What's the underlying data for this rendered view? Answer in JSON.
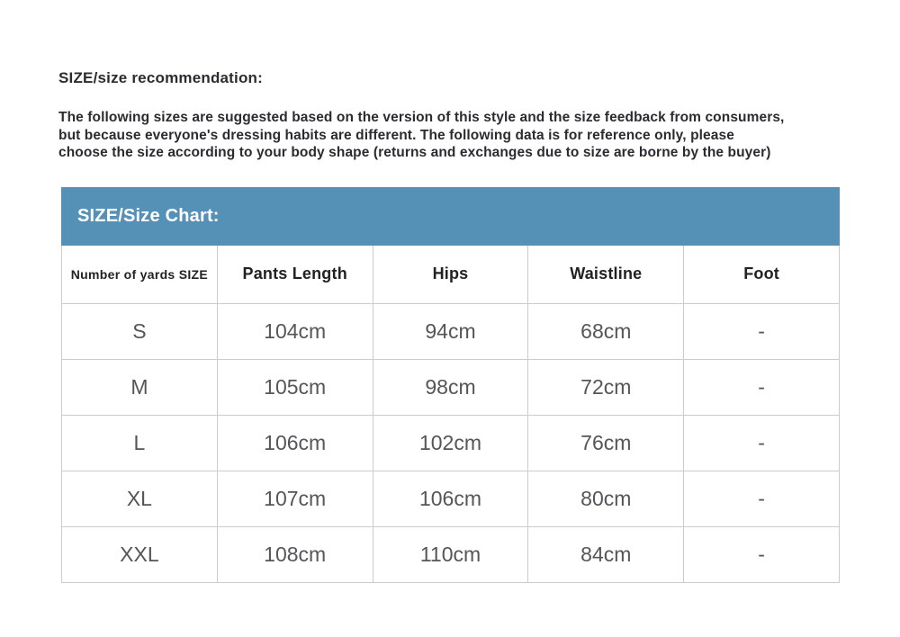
{
  "heading": "SIZE/size recommendation:",
  "intro": {
    "lines": [
      "The following sizes are suggested based on the version of this style and the size feedback from consumers,",
      "but because everyone's dressing habits are different. The following data is for reference only, please",
      "choose the size according to your body shape (returns and exchanges due to size are borne by the buyer)"
    ]
  },
  "table": {
    "title": "SIZE/Size Chart:",
    "columns": [
      "Number of yards SIZE",
      "Pants Length",
      "Hips",
      "Waistline",
      "Foot"
    ],
    "rows": [
      [
        "S",
        "104cm",
        "94cm",
        "68cm",
        "-"
      ],
      [
        "M",
        "105cm",
        "98cm",
        "72cm",
        "-"
      ],
      [
        "L",
        "106cm",
        "102cm",
        "76cm",
        "-"
      ],
      [
        "XL",
        "107cm",
        "106cm",
        "80cm",
        "-"
      ],
      [
        "XXL",
        "108cm",
        "110cm",
        "84cm",
        "-"
      ]
    ]
  },
  "colors": {
    "accent_blue": "#5590b6",
    "heading_text": "#2c2b31",
    "table_text": "#55555a",
    "border": "#cccccc"
  }
}
